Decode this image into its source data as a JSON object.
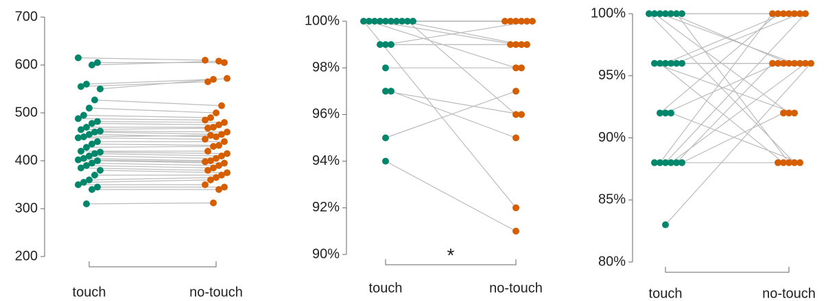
{
  "chart_data": [
    {
      "type": "paired-dots",
      "categories": [
        "touch",
        "no-touch"
      ],
      "colors": [
        "#00876b",
        "#d55e00"
      ],
      "ylim": [
        200,
        700
      ],
      "yticks": [
        200,
        300,
        400,
        500,
        600,
        700
      ],
      "values": [
        [
          615,
          610
        ],
        [
          605,
          605
        ],
        [
          600,
          608
        ],
        [
          560,
          570
        ],
        [
          555,
          565
        ],
        [
          550,
          572
        ],
        [
          527,
          515
        ],
        [
          510,
          500
        ],
        [
          495,
          490
        ],
        [
          488,
          485
        ],
        [
          482,
          480
        ],
        [
          478,
          475
        ],
        [
          470,
          470
        ],
        [
          465,
          468
        ],
        [
          462,
          460
        ],
        [
          460,
          455
        ],
        [
          455,
          450
        ],
        [
          450,
          453
        ],
        [
          448,
          445
        ],
        [
          440,
          440
        ],
        [
          435,
          432
        ],
        [
          428,
          430
        ],
        [
          420,
          420
        ],
        [
          418,
          415
        ],
        [
          415,
          410
        ],
        [
          410,
          405
        ],
        [
          405,
          400
        ],
        [
          402,
          398
        ],
        [
          400,
          395
        ],
        [
          395,
          390
        ],
        [
          390,
          385
        ],
        [
          385,
          380
        ],
        [
          380,
          375
        ],
        [
          370,
          370
        ],
        [
          360,
          365
        ],
        [
          355,
          360
        ],
        [
          350,
          350
        ],
        [
          345,
          345
        ],
        [
          340,
          340
        ],
        [
          310,
          312
        ]
      ]
    },
    {
      "type": "paired-dots",
      "categories": [
        "touch",
        "no-touch"
      ],
      "colors": [
        "#00876b",
        "#d55e00"
      ],
      "ylim": [
        90,
        100
      ],
      "yticks": [
        {
          "value": 90,
          "label": "90%"
        },
        {
          "value": 92,
          "label": "92%"
        },
        {
          "value": 94,
          "label": "94%"
        },
        {
          "value": 96,
          "label": "96%"
        },
        {
          "value": 98,
          "label": "98%"
        },
        {
          "value": 100,
          "label": "100%"
        }
      ],
      "annotation": "*",
      "values": [
        [
          100,
          100
        ],
        [
          100,
          100
        ],
        [
          100,
          100
        ],
        [
          100,
          100
        ],
        [
          100,
          99
        ],
        [
          100,
          99
        ],
        [
          100,
          98
        ],
        [
          100,
          96
        ],
        [
          100,
          92
        ],
        [
          100,
          100
        ],
        [
          99,
          100
        ],
        [
          99,
          99
        ],
        [
          99,
          99
        ],
        [
          98,
          98
        ],
        [
          97,
          96
        ],
        [
          97,
          95
        ],
        [
          95,
          97
        ],
        [
          94,
          91
        ]
      ]
    },
    {
      "type": "paired-dots",
      "categories": [
        "touch",
        "no-touch"
      ],
      "colors": [
        "#00876b",
        "#d55e00"
      ],
      "ylim": [
        80,
        100
      ],
      "yticks": [
        {
          "value": 80,
          "label": "80%"
        },
        {
          "value": 85,
          "label": "85%"
        },
        {
          "value": 90,
          "label": "90%"
        },
        {
          "value": 95,
          "label": "95%"
        },
        {
          "value": 100,
          "label": "100%"
        }
      ],
      "values": [
        [
          100,
          100
        ],
        [
          100,
          96
        ],
        [
          100,
          96
        ],
        [
          100,
          88
        ],
        [
          100,
          92
        ],
        [
          100,
          100
        ],
        [
          100,
          88
        ],
        [
          96,
          100
        ],
        [
          96,
          96
        ],
        [
          96,
          88
        ],
        [
          96,
          100
        ],
        [
          96,
          92
        ],
        [
          96,
          96
        ],
        [
          92,
          96
        ],
        [
          92,
          88
        ],
        [
          92,
          100
        ],
        [
          88,
          100
        ],
        [
          88,
          96
        ],
        [
          88,
          100
        ],
        [
          88,
          96
        ],
        [
          88,
          88
        ],
        [
          88,
          92
        ],
        [
          83,
          96
        ]
      ]
    }
  ]
}
